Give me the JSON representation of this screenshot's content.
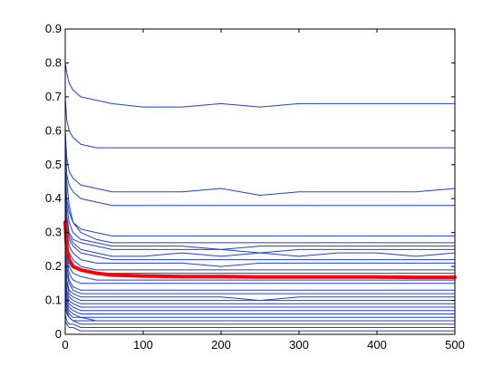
{
  "chart_data": {
    "type": "line",
    "title": "",
    "xlabel": "",
    "ylabel": "",
    "xlim": [
      0,
      500
    ],
    "ylim": [
      0,
      0.9
    ],
    "xticks": [
      0,
      100,
      200,
      300,
      400,
      500
    ],
    "yticks": [
      0,
      0.1,
      0.2,
      0.3,
      0.4,
      0.5,
      0.6,
      0.7,
      0.8,
      0.9
    ],
    "xtick_labels": [
      "0",
      "100",
      "200",
      "300",
      "400",
      "500"
    ],
    "ytick_labels": [
      "0",
      "0.1",
      "0.2",
      "0.3",
      "0.4",
      "0.5",
      "0.6",
      "0.7",
      "0.8",
      "0.9"
    ],
    "grid": false,
    "legend": "none",
    "colors": {
      "thin_series": "#1f3fd8",
      "mean_series": "#ff0000",
      "axes": "#000000"
    },
    "x": [
      0,
      2,
      5,
      10,
      20,
      40,
      60,
      100,
      150,
      200,
      250,
      300,
      350,
      400,
      450,
      500
    ],
    "thin_series": [
      {
        "values": [
          0.8,
          0.77,
          0.74,
          0.72,
          0.7,
          0.69,
          0.68,
          0.67,
          0.67,
          0.68,
          0.67,
          0.68,
          0.68,
          0.68,
          0.68,
          0.68
        ]
      },
      {
        "values": [
          0.7,
          0.63,
          0.6,
          0.58,
          0.56,
          0.55,
          0.55,
          0.55,
          0.55,
          0.55,
          0.55,
          0.55,
          0.55,
          0.55,
          0.55,
          0.55
        ]
      },
      {
        "values": [
          0.6,
          0.52,
          0.48,
          0.46,
          0.44,
          0.43,
          0.42,
          0.42,
          0.42,
          0.43,
          0.41,
          0.42,
          0.42,
          0.42,
          0.42,
          0.43
        ]
      },
      {
        "values": [
          0.55,
          0.47,
          0.44,
          0.42,
          0.4,
          0.39,
          0.38,
          0.38,
          0.38,
          0.38,
          0.38,
          0.38,
          0.38,
          0.38,
          0.38,
          0.38
        ]
      },
      {
        "values": [
          0.5,
          0.4,
          0.36,
          0.33,
          0.31,
          0.3,
          0.29,
          0.29,
          0.29,
          0.29,
          0.29,
          0.29,
          0.29,
          0.29,
          0.29,
          0.29
        ]
      },
      {
        "values": [
          0.6,
          0.45,
          0.38,
          0.33,
          0.3,
          0.28,
          0.27,
          0.27,
          0.27,
          0.27,
          0.27,
          0.27,
          0.27,
          0.27,
          0.27,
          0.27
        ]
      },
      {
        "values": [
          0.48,
          0.38,
          0.33,
          0.3,
          0.28,
          0.27,
          0.26,
          0.26,
          0.26,
          0.25,
          0.26,
          0.26,
          0.26,
          0.26,
          0.26,
          0.26
        ]
      },
      {
        "values": [
          0.45,
          0.35,
          0.3,
          0.28,
          0.27,
          0.26,
          0.25,
          0.25,
          0.25,
          0.25,
          0.24,
          0.25,
          0.25,
          0.25,
          0.25,
          0.25
        ]
      },
      {
        "values": [
          0.44,
          0.34,
          0.29,
          0.27,
          0.25,
          0.24,
          0.23,
          0.23,
          0.24,
          0.23,
          0.24,
          0.23,
          0.24,
          0.24,
          0.23,
          0.24
        ]
      },
      {
        "values": [
          0.42,
          0.32,
          0.28,
          0.26,
          0.24,
          0.23,
          0.22,
          0.22,
          0.22,
          0.22,
          0.22,
          0.22,
          0.22,
          0.22,
          0.22,
          0.22
        ]
      },
      {
        "values": [
          0.4,
          0.3,
          0.26,
          0.24,
          0.22,
          0.21,
          0.21,
          0.21,
          0.21,
          0.2,
          0.21,
          0.21,
          0.21,
          0.21,
          0.21,
          0.21
        ]
      },
      {
        "values": [
          0.38,
          0.28,
          0.24,
          0.22,
          0.2,
          0.19,
          0.19,
          0.19,
          0.19,
          0.19,
          0.19,
          0.19,
          0.19,
          0.19,
          0.19,
          0.19
        ]
      },
      {
        "values": [
          0.36,
          0.26,
          0.22,
          0.2,
          0.19,
          0.18,
          0.18,
          0.18,
          0.18,
          0.18,
          0.18,
          0.18,
          0.18,
          0.18,
          0.18,
          0.18
        ]
      },
      {
        "values": [
          0.35,
          0.24,
          0.2,
          0.18,
          0.17,
          0.16,
          0.16,
          0.16,
          0.16,
          0.16,
          0.16,
          0.16,
          0.16,
          0.16,
          0.16,
          0.16
        ]
      },
      {
        "values": [
          0.33,
          0.22,
          0.18,
          0.16,
          0.15,
          0.15,
          0.15,
          0.15,
          0.15,
          0.15,
          0.15,
          0.15,
          0.15,
          0.15,
          0.15,
          0.15
        ]
      },
      {
        "values": [
          0.3,
          0.2,
          0.16,
          0.14,
          0.13,
          0.13,
          0.13,
          0.13,
          0.13,
          0.13,
          0.13,
          0.13,
          0.13,
          0.13,
          0.13,
          0.13
        ]
      },
      {
        "values": [
          0.28,
          0.18,
          0.15,
          0.13,
          0.12,
          0.12,
          0.12,
          0.12,
          0.12,
          0.12,
          0.12,
          0.12,
          0.12,
          0.12,
          0.12,
          0.12
        ]
      },
      {
        "values": [
          0.26,
          0.16,
          0.13,
          0.12,
          0.11,
          0.11,
          0.11,
          0.11,
          0.11,
          0.11,
          0.1,
          0.11,
          0.11,
          0.11,
          0.11,
          0.11
        ]
      },
      {
        "values": [
          0.25,
          0.15,
          0.12,
          0.11,
          0.1,
          0.1,
          0.1,
          0.1,
          0.1,
          0.1,
          0.1,
          0.1,
          0.1,
          0.1,
          0.1,
          0.1
        ]
      },
      {
        "values": [
          0.22,
          0.13,
          0.11,
          0.1,
          0.09,
          0.09,
          0.09,
          0.09,
          0.09,
          0.09,
          0.09,
          0.09,
          0.09,
          0.09,
          0.09,
          0.09
        ]
      },
      {
        "values": [
          0.2,
          0.12,
          0.1,
          0.09,
          0.08,
          0.08,
          0.08,
          0.08,
          0.08,
          0.08,
          0.08,
          0.08,
          0.08,
          0.08,
          0.08,
          0.08
        ]
      },
      {
        "values": [
          0.18,
          0.11,
          0.09,
          0.08,
          0.07,
          0.07,
          0.07,
          0.07,
          0.07,
          0.07,
          0.07,
          0.07,
          0.07,
          0.07,
          0.07,
          0.07
        ]
      },
      {
        "values": [
          0.16,
          0.1,
          0.08,
          0.07,
          0.06,
          0.06,
          0.06,
          0.06,
          0.06,
          0.06,
          0.06,
          0.06,
          0.06,
          0.06,
          0.06,
          0.06
        ]
      },
      {
        "values": [
          0.14,
          0.09,
          0.07,
          0.06,
          0.05,
          0.05,
          0.05,
          0.05,
          0.05,
          0.05,
          0.05,
          0.05,
          0.05,
          0.05,
          0.05,
          0.05
        ]
      },
      {
        "values": [
          0.12,
          0.08,
          0.06,
          0.05,
          0.05,
          0.04,
          0.04,
          0.04,
          0.04,
          0.04,
          0.04,
          0.04,
          0.04,
          0.04,
          0.04,
          0.04
        ]
      },
      {
        "values": [
          0.1,
          0.07,
          0.05,
          0.04,
          0.04,
          0.04,
          0.04,
          0.04,
          0.04,
          0.04,
          0.04,
          0.04,
          0.04,
          0.04,
          0.04,
          0.04
        ]
      },
      {
        "values": [
          0.08,
          0.06,
          0.05,
          0.04,
          0.03,
          0.03,
          0.03,
          0.03,
          0.03,
          0.03,
          0.03,
          0.03,
          0.03,
          0.03,
          0.03,
          0.03
        ]
      },
      {
        "values": [
          0.06,
          0.04,
          0.03,
          0.03,
          0.02,
          0.02,
          0.02,
          0.02,
          0.02,
          0.02,
          0.02,
          0.02,
          0.02,
          0.02,
          0.02,
          0.02
        ]
      },
      {
        "values": [
          0.04,
          0.03,
          0.02,
          0.02,
          0.01,
          0.01,
          0.01,
          0.01,
          0.01,
          0.01,
          0.01,
          0.01,
          0.01,
          0.01,
          0.01,
          0.01
        ]
      }
    ],
    "mean_series": {
      "values": [
        0.33,
        0.25,
        0.22,
        0.2,
        0.19,
        0.18,
        0.175,
        0.172,
        0.17,
        0.17,
        0.169,
        0.169,
        0.169,
        0.169,
        0.168,
        0.168
      ]
    }
  }
}
